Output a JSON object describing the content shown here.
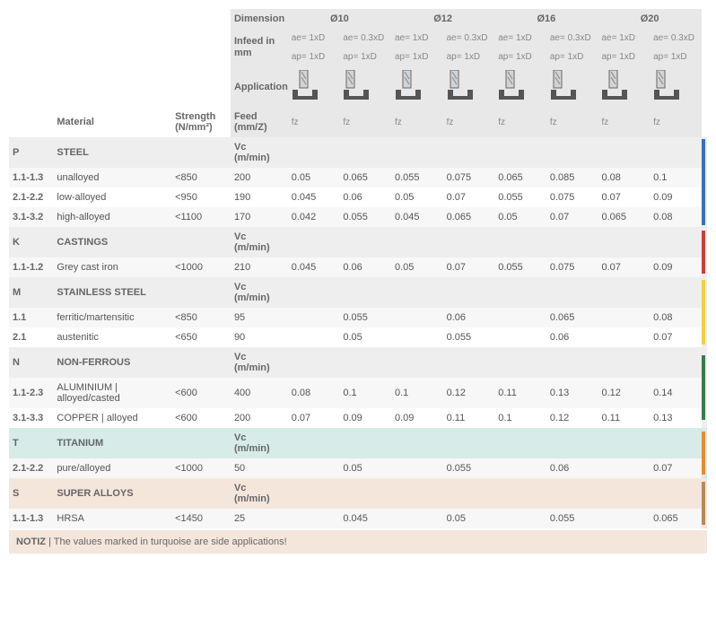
{
  "header": {
    "dimension_label": "Dimension",
    "infeed_label": "Infeed in mm",
    "application_label": "Application",
    "feed_label": "Feed (mm/Z)",
    "material_label": "Material",
    "strength_label": "Strength (N/mm²)",
    "fz": "fz",
    "diameters": [
      "Ø10",
      "Ø12",
      "Ø16",
      "Ø20"
    ],
    "ae_row": [
      "ae= 1xD",
      "ae= 0.3xD",
      "ae= 1xD",
      "ae= 0.3xD",
      "ae= 1xD",
      "ae= 0.3xD",
      "ae= 1xD",
      "ae= 0.3xD"
    ],
    "ap_row": [
      "ap= 1xD",
      "ap= 1xD",
      "ap= 1xD",
      "ap= 1xD",
      "ap= 1xD",
      "ap= 1xD",
      "ap= 1xD",
      "ap= 1xD"
    ]
  },
  "vc_label": "Vc (m/min)",
  "colors": {
    "P": "#3b6fb5",
    "K": "#d13a3a",
    "M": "#f2d23a",
    "N": "#3a7a4a",
    "T": "#e88b2e",
    "S": "#b58a5a",
    "header_bg": "#e8e8e8",
    "t_bg": "#d7ebe9",
    "s_bg": "#f5e6dc"
  },
  "groups": [
    {
      "code": "P",
      "name": "STEEL",
      "bar": "#3b6fb5",
      "bg": "p",
      "rows": [
        {
          "code": "1.1-1.3",
          "mat": "unalloyed",
          "str": "<850",
          "vc": "200",
          "fz": [
            "0.05",
            "0.065",
            "0.055",
            "0.075",
            "0.065",
            "0.085",
            "0.08",
            "0.1"
          ]
        },
        {
          "code": "2.1-2.2",
          "mat": "low-alloyed",
          "str": "<950",
          "vc": "190",
          "fz": [
            "0.045",
            "0.06",
            "0.05",
            "0.07",
            "0.055",
            "0.075",
            "0.07",
            "0.09"
          ]
        },
        {
          "code": "3.1-3.2",
          "mat": "high-alloyed",
          "str": "<1100",
          "vc": "170",
          "fz": [
            "0.042",
            "0.055",
            "0.045",
            "0.065",
            "0.05",
            "0.07",
            "0.065",
            "0.08"
          ]
        }
      ]
    },
    {
      "code": "K",
      "name": "CASTINGS",
      "bar": "#d13a3a",
      "bg": "k",
      "rows": [
        {
          "code": "1.1-1.2",
          "mat": "Grey cast iron",
          "str": "<1000",
          "vc": "210",
          "fz": [
            "0.045",
            "0.06",
            "0.05",
            "0.07",
            "0.055",
            "0.075",
            "0.07",
            "0.09"
          ]
        }
      ]
    },
    {
      "code": "M",
      "name": "STAINLESS STEEL",
      "bar": "#f2d23a",
      "bg": "m",
      "rows": [
        {
          "code": "1.1",
          "mat": "ferritic/martensitic",
          "str": "<850",
          "vc": "95",
          "fz": [
            "",
            "0.055",
            "",
            "0.06",
            "",
            "0.065",
            "",
            "0.08"
          ]
        },
        {
          "code": "2.1",
          "mat": "austenitic",
          "str": "<650",
          "vc": "90",
          "fz": [
            "",
            "0.05",
            "",
            "0.055",
            "",
            "0.06",
            "",
            "0.07"
          ]
        }
      ]
    },
    {
      "code": "N",
      "name": "NON-FERROUS",
      "bar": "#3a7a4a",
      "bg": "n",
      "rows": [
        {
          "code": "1.1-2.3",
          "mat": "ALUMINIUM | alloyed/casted",
          "str": "<600",
          "vc": "400",
          "fz": [
            "0.08",
            "0.1",
            "0.1",
            "0.12",
            "0.11",
            "0.13",
            "0.12",
            "0.14"
          ]
        },
        {
          "code": "3.1-3.3",
          "mat": "COPPER | alloyed",
          "str": "<600",
          "vc": "200",
          "fz": [
            "0.07",
            "0.09",
            "0.09",
            "0.11",
            "0.1",
            "0.12",
            "0.11",
            "0.13"
          ]
        }
      ]
    },
    {
      "code": "T",
      "name": "TITANIUM",
      "bar": "#e88b2e",
      "bg": "t",
      "rows": [
        {
          "code": "2.1-2.2",
          "mat": "pure/alloyed",
          "str": "<1000",
          "vc": "50",
          "fz": [
            "",
            "0.05",
            "",
            "0.055",
            "",
            "0.06",
            "",
            "0.07"
          ]
        }
      ]
    },
    {
      "code": "S",
      "name": "SUPER ALLOYS",
      "bar": "#b58a5a",
      "bg": "s",
      "rows": [
        {
          "code": "1.1-1.3",
          "mat": "HRSA",
          "str": "<1450",
          "vc": "25",
          "fz": [
            "",
            "0.045",
            "",
            "0.05",
            "",
            "0.055",
            "",
            "0.065"
          ]
        }
      ]
    }
  ],
  "note": {
    "label": "NOTIZ",
    "text": "The values marked in turquoise are side applications!"
  }
}
